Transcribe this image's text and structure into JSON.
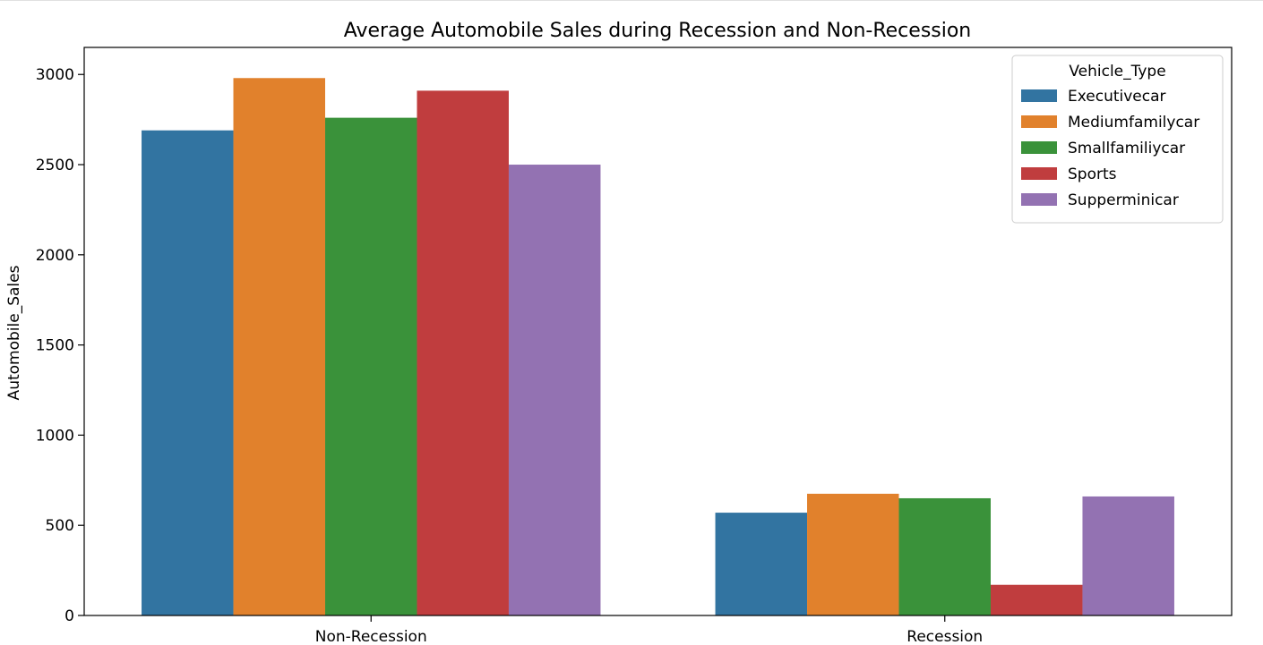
{
  "chart_data": {
    "type": "bar",
    "title": "Average Automobile Sales during Recession and Non-Recession",
    "xlabel": "",
    "ylabel": "Automobile_Sales",
    "categories": [
      "Non-Recession",
      "Recession"
    ],
    "ylim": [
      0,
      3150
    ],
    "yticks": [
      0,
      500,
      1000,
      1500,
      2000,
      2500,
      3000
    ],
    "grid": false,
    "legend": {
      "title": "Vehicle_Type",
      "placement": "top-right"
    },
    "series": [
      {
        "name": "Executivecar",
        "color": "#3274a1",
        "values": [
          2690,
          570
        ]
      },
      {
        "name": "Mediumfamilycar",
        "color": "#e1812c",
        "values": [
          2980,
          675
        ]
      },
      {
        "name": "Smallfamiliycar",
        "color": "#3a923a",
        "values": [
          2760,
          650
        ]
      },
      {
        "name": "Sports",
        "color": "#c03d3e",
        "values": [
          2910,
          170
        ]
      },
      {
        "name": "Supperminicar",
        "color": "#9372b2",
        "values": [
          2500,
          660
        ]
      }
    ]
  }
}
